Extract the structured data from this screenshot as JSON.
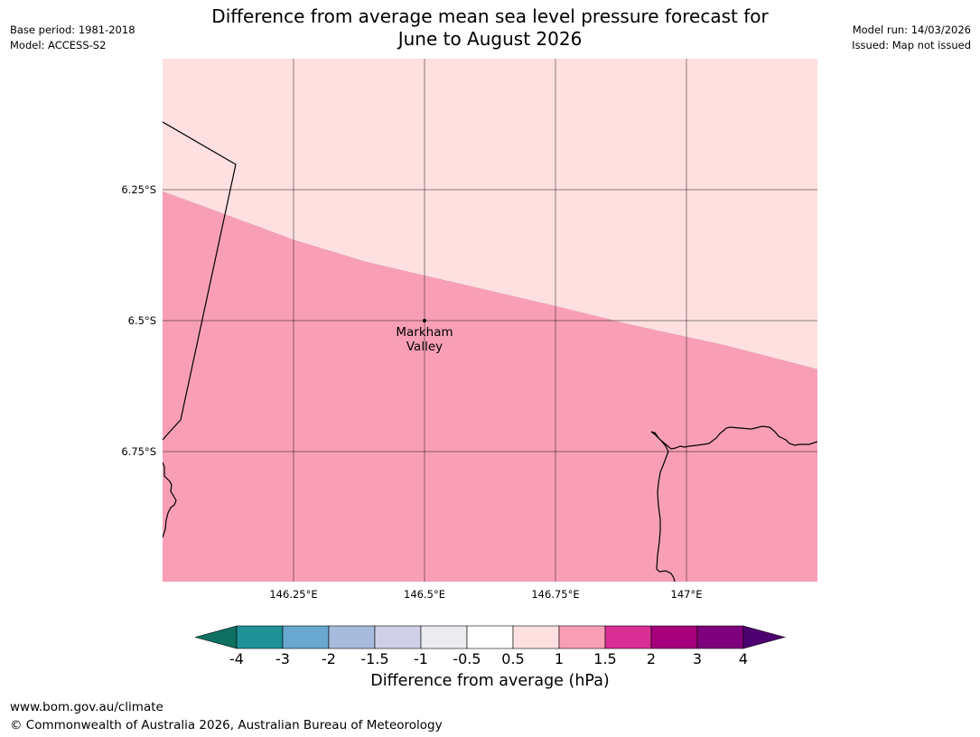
{
  "header": {
    "title_line1": "Difference from average mean sea level pressure forecast for",
    "title_line2": "June to August 2026",
    "base_period": "Base period: 1981-2018",
    "model": "Model: ACCESS-S2",
    "model_run": "Model run: 14/03/2026",
    "issued": "Issued: Map not issued"
  },
  "map": {
    "lat_labels": [
      "6.25°S",
      "6.5°S",
      "6.75°S"
    ],
    "lon_labels": [
      "146.25°E",
      "146.5°E",
      "146.75°E",
      "147°E"
    ],
    "place": {
      "name_line1": "Markham",
      "name_line2": "Valley"
    },
    "regions": [
      {
        "range": "0.5 to 1 hPa",
        "color": "#fde0df"
      },
      {
        "range": "1 to 1.5 hPa",
        "color": "#f89fb6"
      }
    ]
  },
  "colorbar": {
    "ticks": [
      "-4",
      "-3",
      "-2",
      "-1.5",
      "-1",
      "-0.5",
      "0.5",
      "1",
      "1.5",
      "2",
      "3",
      "4"
    ],
    "colors": [
      "#0d7061",
      "#1e9296",
      "#68a8d1",
      "#a7bbdc",
      "#cfd0e6",
      "#ecebf0",
      "#ffffff",
      "#fde0df",
      "#f89fb6",
      "#d92f95",
      "#a7007c",
      "#7f007c",
      "#4d0070"
    ],
    "label": "Difference from average (hPa)"
  },
  "footer": {
    "url": "www.bom.gov.au/climate",
    "copyright": "© Commonwealth of Australia 2026, Australian Bureau of Meteorology"
  }
}
